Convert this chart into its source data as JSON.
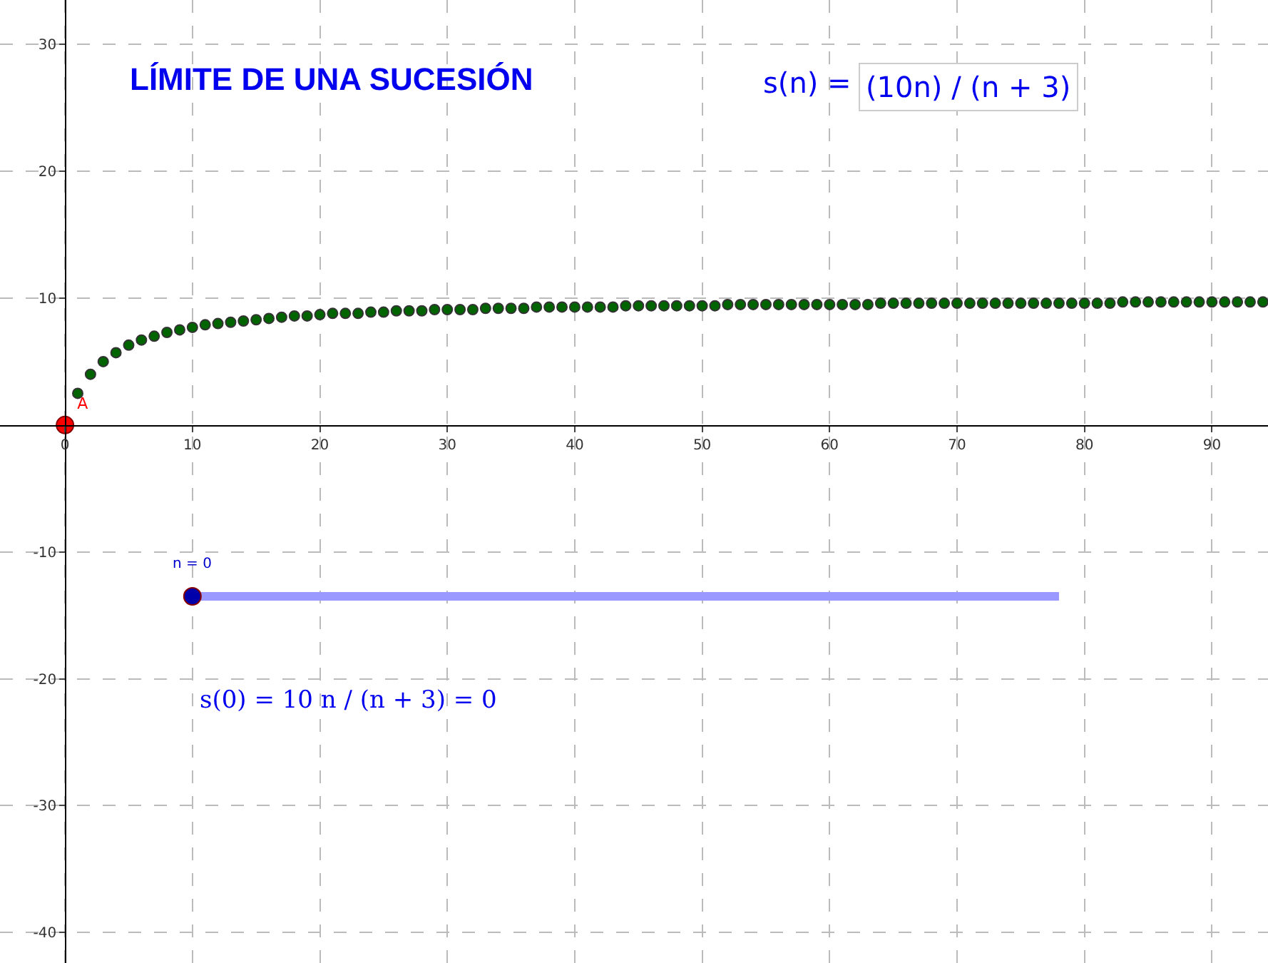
{
  "chart_data": {
    "type": "scatter",
    "title": "LÍMITE DE UNA SUCESIÓN",
    "series": [
      {
        "color": "#006400",
        "x": [
          1,
          2,
          3,
          4,
          5,
          6,
          7,
          8,
          9,
          10,
          11,
          12,
          13,
          14,
          15,
          16,
          17,
          18,
          19,
          20,
          21,
          22,
          23,
          24,
          25,
          26,
          27,
          28,
          29,
          30,
          31,
          32,
          33,
          34,
          35,
          36,
          37,
          38,
          39,
          40,
          41,
          42,
          43,
          44,
          45,
          46,
          47,
          48,
          49,
          50,
          51,
          52,
          53,
          54,
          55,
          56,
          57,
          58,
          59,
          60,
          61,
          62,
          63,
          64,
          65,
          66,
          67,
          68,
          69,
          70,
          71,
          72,
          73,
          74,
          75,
          76,
          77,
          78,
          79,
          80,
          81,
          82,
          83,
          84,
          85,
          86,
          87,
          88,
          89,
          90,
          91,
          92,
          93,
          94
        ],
        "values": [
          2.5,
          4.0,
          5.0,
          5.7,
          6.3,
          6.7,
          7.0,
          7.3,
          7.5,
          7.7,
          7.9,
          8.0,
          8.1,
          8.2,
          8.3,
          8.4,
          8.5,
          8.6,
          8.6,
          8.7,
          8.8,
          8.8,
          8.8,
          8.9,
          8.9,
          9.0,
          9.0,
          9.0,
          9.1,
          9.1,
          9.1,
          9.1,
          9.2,
          9.2,
          9.2,
          9.2,
          9.3,
          9.3,
          9.3,
          9.3,
          9.3,
          9.3,
          9.3,
          9.4,
          9.4,
          9.4,
          9.4,
          9.4,
          9.4,
          9.4,
          9.4,
          9.5,
          9.5,
          9.5,
          9.5,
          9.5,
          9.5,
          9.5,
          9.5,
          9.5,
          9.5,
          9.5,
          9.5,
          9.6,
          9.6,
          9.6,
          9.6,
          9.6,
          9.6,
          9.6,
          9.6,
          9.6,
          9.6,
          9.6,
          9.6,
          9.6,
          9.6,
          9.6,
          9.6,
          9.6,
          9.6,
          9.6,
          9.7,
          9.7,
          9.7,
          9.7,
          9.7,
          9.7,
          9.7,
          9.7,
          9.7,
          9.7,
          9.7,
          9.7
        ]
      },
      {
        "name": "A",
        "color": "#ff0000",
        "x": [
          0
        ],
        "values": [
          0
        ]
      },
      {
        "type": "line",
        "marker": "none",
        "color": "#9999ff",
        "x": [
          10,
          78
        ],
        "values": [
          -13.5,
          -13.5
        ]
      },
      {
        "color": "#0000aa",
        "x": [
          10
        ],
        "values": [
          -13.5
        ]
      }
    ],
    "annotations": [
      "s(n) =",
      "(10n) / (n + 3)",
      {
        "text": "n = 0",
        "x": 10,
        "y": -13.5
      },
      "s(0) = 10 n / (n + 3) = 0"
    ],
    "xlim": [
      -5.1,
      94.4
    ],
    "ylim": [
      -42.4,
      33.5
    ],
    "xticks": [
      0,
      10,
      20,
      30,
      40,
      50,
      60,
      70,
      80,
      90
    ],
    "yticks": [
      -40,
      -30,
      -20,
      -10,
      10,
      20,
      30
    ],
    "grid": true,
    "legend": false,
    "marker": "circle"
  }
}
